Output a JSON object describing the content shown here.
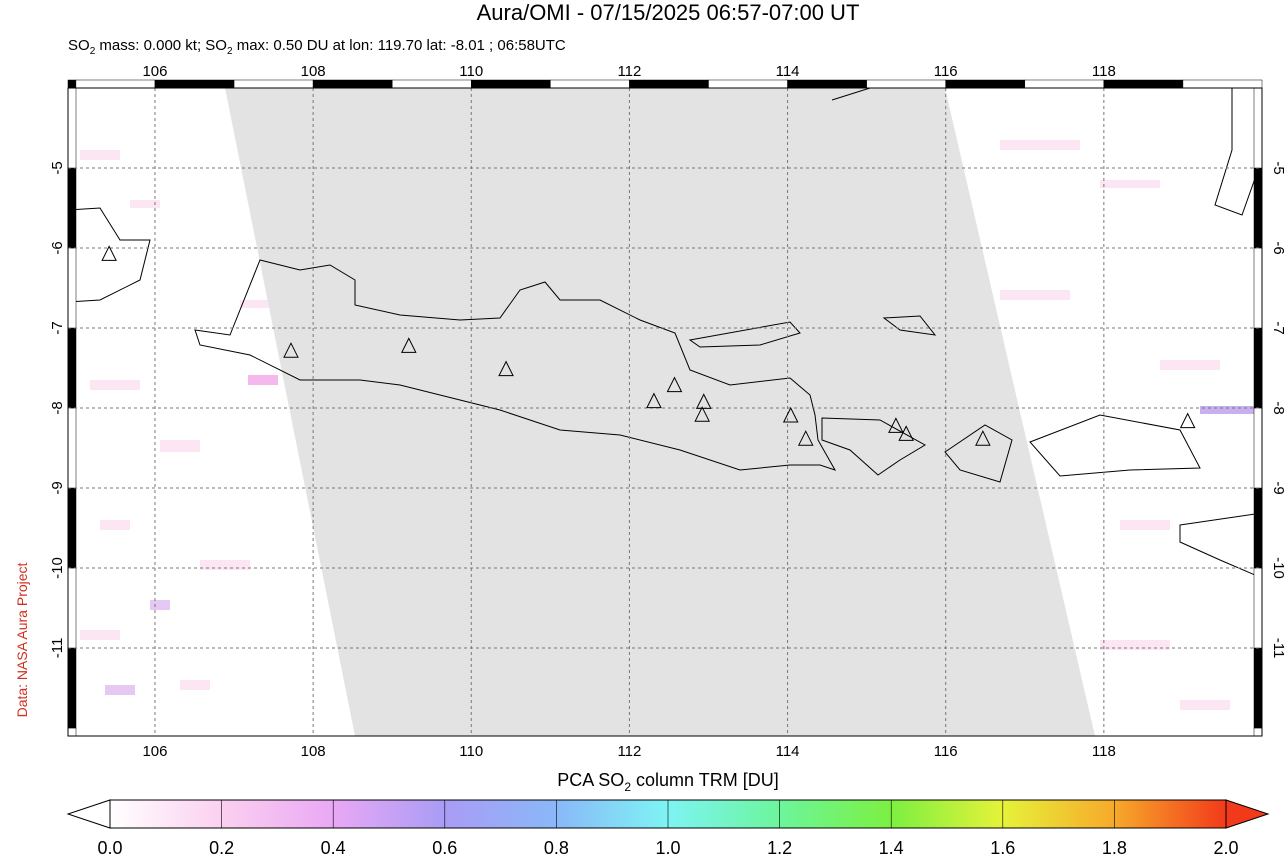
{
  "chart_data": {
    "type": "map",
    "title": "Aura/OMI - 07/15/2025 06:57-07:00 UT",
    "subtitle_parts": [
      "SO",
      "2",
      " mass: 0.000 kt; SO",
      "2",
      " max: 0.50 DU at lon: 119.70 lat: -8.01 ; 06:58UTC"
    ],
    "credit": "Data: NASA Aura Project",
    "xlim": [
      104.9,
      120.0
    ],
    "ylim": [
      -12.1,
      -4.0
    ],
    "xticks": [
      106,
      108,
      110,
      112,
      114,
      116,
      118
    ],
    "yticks": [
      -5,
      -6,
      -7,
      -8,
      -9,
      -10,
      -11
    ],
    "grid": true,
    "volcanoes": {
      "lon": [
        105.42,
        107.72,
        109.21,
        110.44,
        112.31,
        112.57,
        112.94,
        112.92,
        114.04,
        114.23,
        115.37,
        115.5,
        116.47,
        119.06
      ],
      "lat": [
        -6.08,
        -7.29,
        -7.23,
        -7.52,
        -7.92,
        -7.72,
        -7.93,
        -8.09,
        -8.1,
        -8.39,
        -8.23,
        -8.33,
        -8.39,
        -8.17
      ]
    },
    "colorbar": {
      "label_parts": [
        "PCA SO",
        "2",
        " column TRM [DU]"
      ],
      "lim": [
        0,
        2
      ],
      "ticks": [
        {
          "value": 0,
          "label": "0.0"
        },
        {
          "value": 0.2,
          "label": "0.2"
        },
        {
          "value": 0.4,
          "label": "0.4"
        },
        {
          "value": 0.6,
          "label": "0.6"
        },
        {
          "value": 0.8,
          "label": "0.8"
        },
        {
          "value": 1,
          "label": "1.0"
        },
        {
          "value": 1.2,
          "label": "1.2"
        },
        {
          "value": 1.4,
          "label": "1.4"
        },
        {
          "value": 1.6,
          "label": "1.6"
        },
        {
          "value": 1.8,
          "label": "1.8"
        },
        {
          "value": 2,
          "label": "2.0"
        }
      ],
      "colors": [
        "#ffffff",
        "#fbd0f0",
        "#e9a8f5",
        "#a99cf5",
        "#8ab8f8",
        "#7ef4f4",
        "#6cf59c",
        "#7cf040",
        "#e6f23a",
        "#f7a92a",
        "#f23a1a"
      ]
    }
  }
}
